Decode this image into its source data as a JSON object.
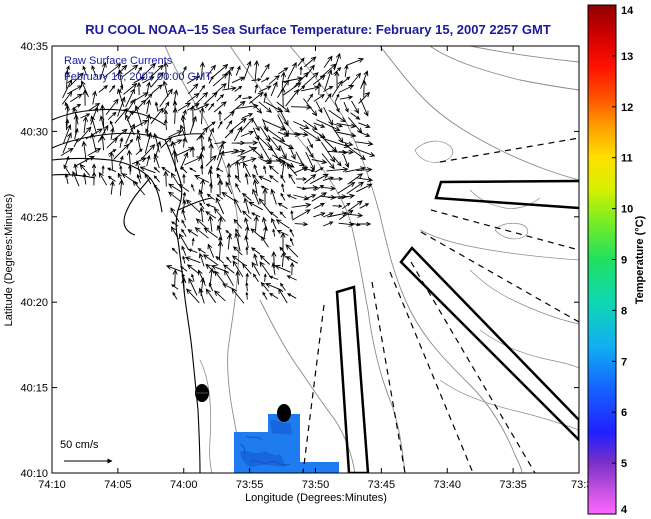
{
  "title": "RU COOL  NOAA–15  Sea Surface Temperature:  February 15, 2007 2257 GMT",
  "annotations": {
    "line1": "Raw Surface Currents",
    "line2": "February 16, 2007 00:00 GMT",
    "scale_label": "50 cm/s"
  },
  "colorbar": {
    "label": "Temperature (°C)",
    "min": 4,
    "max": 14,
    "ticks": [
      "4",
      "5",
      "6",
      "7",
      "8",
      "9",
      "10",
      "11",
      "12",
      "13",
      "14"
    ]
  },
  "colors": {
    "title": "#1a1aa0",
    "sst_patch": "#1e7cf0",
    "sst_patch_dark": "#1560d8",
    "contour": "#8a8a8a",
    "coast": "#000000"
  },
  "chart_data": {
    "type": "map",
    "title": "RU COOL  NOAA–15  Sea Surface Temperature:  February 15, 2007 2257 GMT",
    "xlabel": "Longitude (Degrees:Minutes)",
    "ylabel": "Latitude (Degrees:Minutes)",
    "xticks": [
      "74:10",
      "74:05",
      "74:00",
      "73:55",
      "73:50",
      "73:45",
      "73:40",
      "73:35",
      "73:3"
    ],
    "yticks": [
      "40:35",
      "40:30",
      "40:25",
      "40:20",
      "40:15",
      "40:10"
    ],
    "xlim": [
      -74.1667,
      -73.5
    ],
    "ylim": [
      40.1667,
      40.5833
    ],
    "color_scale": {
      "min": 4,
      "max": 14,
      "unit": "°C"
    },
    "vector_scale": "50 cm/s",
    "markers": [
      {
        "lon": -73.985,
        "lat": 40.245
      },
      {
        "lon": -73.8705,
        "lat": 40.2255
      }
    ]
  }
}
